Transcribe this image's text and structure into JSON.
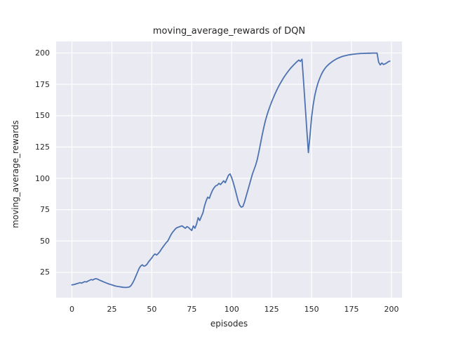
{
  "figure": {
    "title": "moving_average_rewards of DQN"
  },
  "chart_data": {
    "type": "line",
    "title": "moving_average_rewards of DQN",
    "xlabel": "episodes",
    "ylabel": "moving_average_rewards",
    "legend": "none",
    "grid": true,
    "style": "seaborn-darkgrid",
    "xlim": [
      -9.9,
      206.6
    ],
    "ylim": [
      4.8,
      209.2
    ],
    "xticks": [
      0,
      25,
      50,
      75,
      100,
      125,
      150,
      175,
      200
    ],
    "yticks": [
      25,
      50,
      75,
      100,
      125,
      150,
      175,
      200
    ],
    "x_start": 0,
    "x_step": 1,
    "series": [
      {
        "name": "moving_average_rewards",
        "values": [
          15,
          15.2,
          15.5,
          16,
          16.3,
          16.8,
          16.4,
          17,
          17.6,
          17.3,
          18,
          18.6,
          19.3,
          18.9,
          19.6,
          20,
          19.6,
          19,
          18.4,
          17.9,
          17.3,
          16.8,
          16.3,
          15.8,
          15.4,
          15,
          14.6,
          14.2,
          13.9,
          13.7,
          13.5,
          13.3,
          13.1,
          13,
          13,
          13.1,
          13.4,
          14.5,
          16.5,
          19,
          22,
          25,
          28,
          30,
          31,
          30,
          30.3,
          31.5,
          33.5,
          35,
          36.5,
          38.5,
          39.7,
          38.8,
          40,
          41.5,
          43.5,
          45.3,
          47,
          48.7,
          50,
          52.5,
          55,
          57,
          58.5,
          60,
          60.8,
          61.2,
          61.7,
          62.1,
          61,
          60.2,
          61.5,
          60.8,
          59.5,
          58.4,
          62,
          60.2,
          63.5,
          68.6,
          66.4,
          69.5,
          72.5,
          78,
          82,
          85,
          84,
          87.5,
          90.5,
          92.5,
          94,
          94.5,
          96,
          95,
          96.5,
          98,
          96.5,
          99.5,
          102.5,
          103.5,
          100.5,
          96.5,
          92,
          87,
          82,
          78.5,
          77,
          77.5,
          81,
          85.5,
          90,
          94.5,
          99,
          103.5,
          107,
          110.5,
          115,
          121,
          127.5,
          134,
          140,
          145.5,
          150,
          154,
          157.5,
          161,
          164,
          167,
          169.8,
          172.4,
          174.8,
          177,
          179.2,
          181.2,
          183,
          184.8,
          186.4,
          188,
          189.4,
          190.7,
          192,
          193.2,
          194.3,
          193.3,
          195,
          177,
          158,
          139,
          120.5,
          134,
          148.5,
          158.5,
          166,
          171.5,
          176,
          179.5,
          182.5,
          185,
          187,
          188.7,
          190,
          191.2,
          192.2,
          193.2,
          194,
          194.8,
          195.5,
          196.1,
          196.6,
          197.1,
          197.5,
          197.8,
          198.1,
          198.4,
          198.6,
          198.8,
          199,
          199.1,
          199.3,
          199.4,
          199.5,
          199.6,
          199.6,
          199.7,
          199.7,
          199.8,
          199.8,
          199.8,
          199.9,
          199.9,
          199.9,
          199.9,
          192.5,
          190.5,
          192,
          190.8,
          191.3,
          192,
          193,
          193.5
        ]
      }
    ],
    "colors": {
      "line": "#4c72b0",
      "plot_background": "#eaeaf2",
      "grid": "#ffffff",
      "text": "#262626",
      "figure_background": "#ffffff"
    }
  }
}
